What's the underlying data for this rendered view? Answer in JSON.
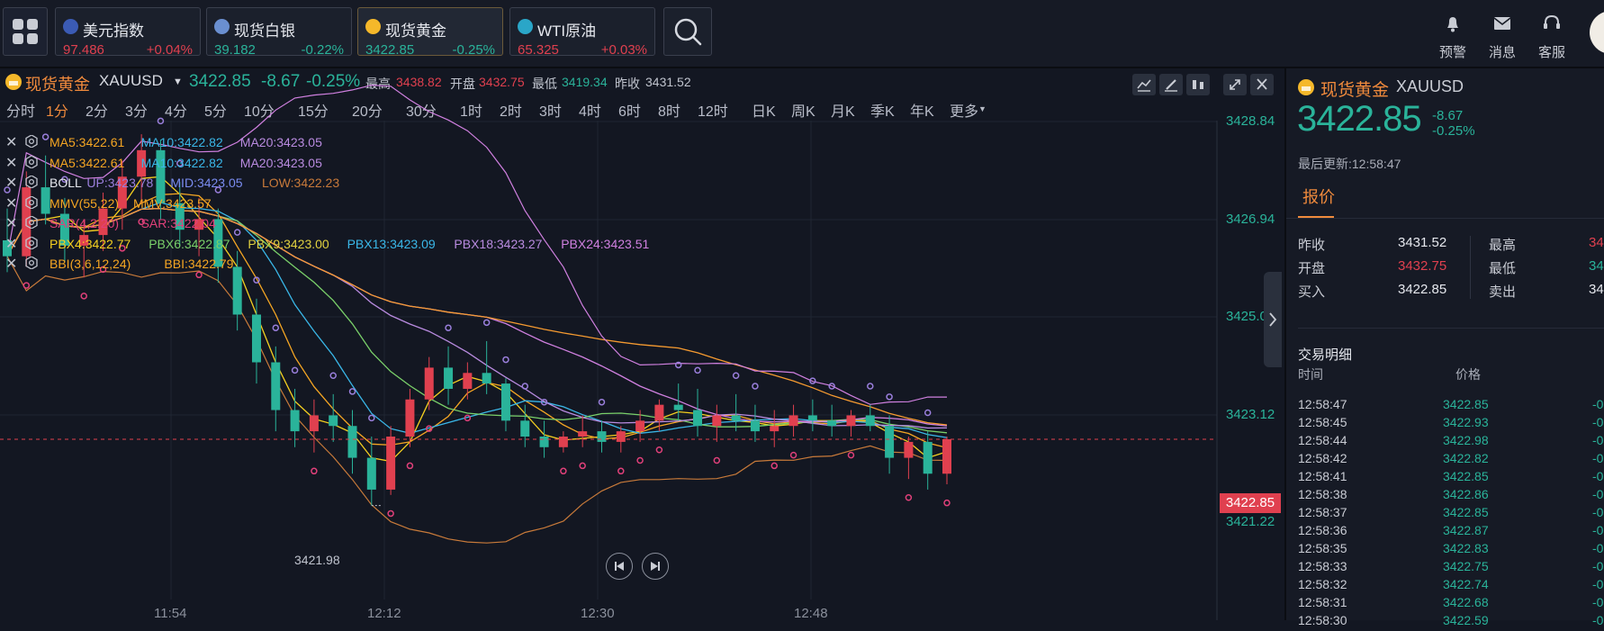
{
  "tickers": [
    {
      "name": "美元指数",
      "price": "97.486",
      "change": "+0.04%",
      "flag": "us-flag-icon",
      "price_color": "#e0404f",
      "change_color": "#e0404f"
    },
    {
      "name": "现货白银",
      "price": "39.182",
      "change": "-0.22%",
      "flag": "silver-icon",
      "price_color": "#2ab39a",
      "change_color": "#2ab39a"
    },
    {
      "name": "现货黄金",
      "price": "3422.85",
      "change": "-0.25%",
      "flag": "gold-icon",
      "price_color": "#2ab39a",
      "change_color": "#2ab39a",
      "active": true
    },
    {
      "name": "WTI原油",
      "price": "65.325",
      "change": "+0.03%",
      "flag": "oil-icon",
      "price_color": "#e0404f",
      "change_color": "#e0404f"
    }
  ],
  "top_actions": [
    {
      "label": "预警",
      "icon": "bell-icon"
    },
    {
      "label": "消息",
      "icon": "mail-icon"
    },
    {
      "label": "客服",
      "icon": "headset-icon"
    }
  ],
  "chart_header": {
    "name": "现货黄金",
    "symbol": "XAUUSD",
    "price": "3422.85",
    "change": "-8.67",
    "pct": "-0.25%",
    "high_label": "最高",
    "high": "3438.82",
    "open_label": "开盘",
    "open": "3432.75",
    "low_label": "最低",
    "low": "3419.34",
    "prev_label": "昨收",
    "prev": "3431.52"
  },
  "timeframes": [
    "分时",
    "1分",
    "2分",
    "3分",
    "4分",
    "5分",
    "10分",
    "15分",
    "20分",
    "30分",
    "1时",
    "2时",
    "3时",
    "4时",
    "6时",
    "8时",
    "12时",
    "日K",
    "周K",
    "月K",
    "季K",
    "年K",
    "更多"
  ],
  "selected_timeframe": "1分",
  "indicators": [
    [
      {
        "t": "MA5:3422.61",
        "c": "#f5a623"
      },
      {
        "t": "MA10:3422.82",
        "c": "#3ab7e8"
      },
      {
        "t": "MA20:3423.05",
        "c": "#b98be0"
      }
    ],
    [
      {
        "t": "MA5:3422.61",
        "c": "#f5a623"
      },
      {
        "t": "MA10:3422.82",
        "c": "#3ab7e8"
      },
      {
        "t": "MA20:3423.05",
        "c": "#b98be0"
      }
    ],
    [
      {
        "t": "BOLL",
        "c": "#e6e8ee"
      },
      {
        "t": "UP:3423.78",
        "c": "#9a7fdc"
      },
      {
        "t": "MID:3423.05",
        "c": "#7a8cf0"
      },
      {
        "t": "LOW:3422.23",
        "c": "#c87a3a"
      }
    ],
    [
      {
        "t": "MMV(55,22)",
        "c": "#f5a623"
      },
      {
        "t": "MMV:3423.57",
        "c": "#f5a623"
      }
    ],
    [
      {
        "t": "SAR(4,2,20)",
        "c": "#e0407a"
      },
      {
        "t": "SAR:3422.04",
        "c": "#e0407a"
      }
    ],
    [
      {
        "t": "PBX4:3422.77",
        "c": "#f5d020"
      },
      {
        "t": "PBX6:3422.87",
        "c": "#7ad06a"
      },
      {
        "t": "PBX9:3423.00",
        "c": "#e0d040"
      },
      {
        "t": "PBX13:3423.09",
        "c": "#3ab7e8"
      },
      {
        "t": "PBX18:3423.27",
        "c": "#b98be0"
      },
      {
        "t": "PBX24:3423.51",
        "c": "#d080e0"
      }
    ],
    [
      {
        "t": "BBI(3,6,12,24)",
        "c": "#f5a623"
      },
      {
        "t": "BBI:3422.79",
        "c": "#f5a623"
      }
    ]
  ],
  "y_axis": [
    "3428.84",
    "3426.94",
    "3425.03",
    "3423.12",
    "3421.22"
  ],
  "x_axis": [
    "11:54",
    "12:12",
    "12:30",
    "12:48"
  ],
  "current_price_tag": "3422.85",
  "low_marker": "3421.98",
  "right_panel": {
    "name": "现货黄金",
    "symbol": "XAUUSD",
    "price": "3422.85",
    "change": "-8.67",
    "pct": "-0.25%",
    "updated": "最后更新:12:58:47",
    "tab": "报价",
    "quote_left": [
      {
        "label": "昨收",
        "value": "3431.52",
        "color": "#e6e8ee"
      },
      {
        "label": "开盘",
        "value": "3432.75",
        "color": "#e0404f"
      },
      {
        "label": "买入",
        "value": "3422.85",
        "color": "#e6e8ee"
      }
    ],
    "quote_right": [
      {
        "label": "最高",
        "value": "34",
        "color": "#e0404f"
      },
      {
        "label": "最低",
        "value": "34",
        "color": "#2ab39a"
      },
      {
        "label": "卖出",
        "value": "34",
        "color": "#e6e8ee"
      }
    ],
    "trades_title": "交易明细",
    "col_time": "时间",
    "col_price": "价格",
    "trades": [
      {
        "time": "12:58:47",
        "price": "3422.85",
        "chg": "-0"
      },
      {
        "time": "12:58:45",
        "price": "3422.93",
        "chg": "-0"
      },
      {
        "time": "12:58:44",
        "price": "3422.98",
        "chg": "-0"
      },
      {
        "time": "12:58:42",
        "price": "3422.82",
        "chg": "-0"
      },
      {
        "time": "12:58:41",
        "price": "3422.85",
        "chg": "-0"
      },
      {
        "time": "12:58:38",
        "price": "3422.86",
        "chg": "-0"
      },
      {
        "time": "12:58:37",
        "price": "3422.85",
        "chg": "-0"
      },
      {
        "time": "12:58:36",
        "price": "3422.87",
        "chg": "-0"
      },
      {
        "time": "12:58:35",
        "price": "3422.83",
        "chg": "-0"
      },
      {
        "time": "12:58:33",
        "price": "3422.75",
        "chg": "-0"
      },
      {
        "time": "12:58:32",
        "price": "3422.74",
        "chg": "-0"
      },
      {
        "time": "12:58:31",
        "price": "3422.68",
        "chg": "-0"
      },
      {
        "time": "12:58:30",
        "price": "3422.59",
        "chg": "-0"
      }
    ]
  },
  "chart_data": {
    "type": "candlestick",
    "y_range": [
      3421.22,
      3428.84
    ],
    "x_ticks": [
      "11:54",
      "12:12",
      "12:30",
      "12:48"
    ],
    "candles": [
      [
        3426.6,
        3427.2,
        3426.0,
        3426.3
      ],
      [
        3426.3,
        3427.9,
        3426.1,
        3427.6
      ],
      [
        3427.6,
        3428.2,
        3426.9,
        3427.1
      ],
      [
        3427.1,
        3427.4,
        3426.2,
        3426.5
      ],
      [
        3426.5,
        3427.0,
        3425.9,
        3426.7
      ],
      [
        3426.7,
        3427.5,
        3426.4,
        3427.2
      ],
      [
        3427.2,
        3428.1,
        3426.8,
        3427.8
      ],
      [
        3427.8,
        3428.6,
        3427.3,
        3428.3
      ],
      [
        3428.3,
        3428.5,
        3427.0,
        3427.3
      ],
      [
        3427.3,
        3427.7,
        3426.5,
        3426.8
      ],
      [
        3426.8,
        3427.4,
        3426.3,
        3427.0
      ],
      [
        3427.0,
        3427.2,
        3425.8,
        3426.1
      ],
      [
        3426.1,
        3426.4,
        3424.9,
        3425.2
      ],
      [
        3425.2,
        3425.5,
        3423.9,
        3424.3
      ],
      [
        3424.3,
        3424.6,
        3423.0,
        3423.4
      ],
      [
        3423.4,
        3423.8,
        3422.7,
        3423.0
      ],
      [
        3423.0,
        3423.6,
        3422.6,
        3423.3
      ],
      [
        3423.3,
        3423.7,
        3422.8,
        3423.1
      ],
      [
        3423.1,
        3423.4,
        3422.2,
        3422.5
      ],
      [
        3422.5,
        3422.9,
        3421.6,
        3421.9
      ],
      [
        3421.9,
        3423.1,
        3421.8,
        3422.9
      ],
      [
        3422.9,
        3423.8,
        3422.7,
        3423.6
      ],
      [
        3423.6,
        3424.4,
        3423.4,
        3424.2
      ],
      [
        3424.2,
        3424.6,
        3423.5,
        3423.8
      ],
      [
        3423.8,
        3424.3,
        3423.6,
        3424.1
      ],
      [
        3424.1,
        3424.7,
        3423.7,
        3423.9
      ],
      [
        3423.9,
        3424.0,
        3423.0,
        3423.2
      ],
      [
        3423.2,
        3423.5,
        3422.7,
        3422.9
      ],
      [
        3422.9,
        3423.2,
        3422.5,
        3422.7
      ],
      [
        3422.7,
        3423.0,
        3422.6,
        3422.9
      ],
      [
        3422.9,
        3423.3,
        3422.7,
        3423.0
      ],
      [
        3423.0,
        3423.2,
        3422.6,
        3422.8
      ],
      [
        3422.8,
        3423.1,
        3422.6,
        3423.0
      ],
      [
        3423.0,
        3423.4,
        3422.8,
        3423.2
      ],
      [
        3423.2,
        3423.6,
        3423.0,
        3423.5
      ],
      [
        3423.5,
        3423.9,
        3423.2,
        3423.4
      ],
      [
        3423.4,
        3423.8,
        3422.9,
        3423.1
      ],
      [
        3423.1,
        3423.5,
        3422.8,
        3423.3
      ],
      [
        3423.3,
        3423.7,
        3423.0,
        3423.2
      ],
      [
        3423.2,
        3423.5,
        3422.8,
        3423.0
      ],
      [
        3423.0,
        3423.4,
        3422.7,
        3423.1
      ],
      [
        3423.1,
        3423.5,
        3422.9,
        3423.3
      ],
      [
        3423.3,
        3423.6,
        3423.0,
        3423.2
      ],
      [
        3423.2,
        3423.5,
        3422.9,
        3423.1
      ],
      [
        3423.1,
        3423.4,
        3422.9,
        3423.3
      ],
      [
        3423.3,
        3423.5,
        3423.0,
        3423.1
      ],
      [
        3423.1,
        3423.3,
        3422.2,
        3422.5
      ],
      [
        3422.5,
        3422.9,
        3422.1,
        3422.8
      ],
      [
        3422.8,
        3423.0,
        3421.9,
        3422.2
      ],
      [
        3422.2,
        3422.9,
        3422.0,
        3422.85
      ]
    ]
  }
}
